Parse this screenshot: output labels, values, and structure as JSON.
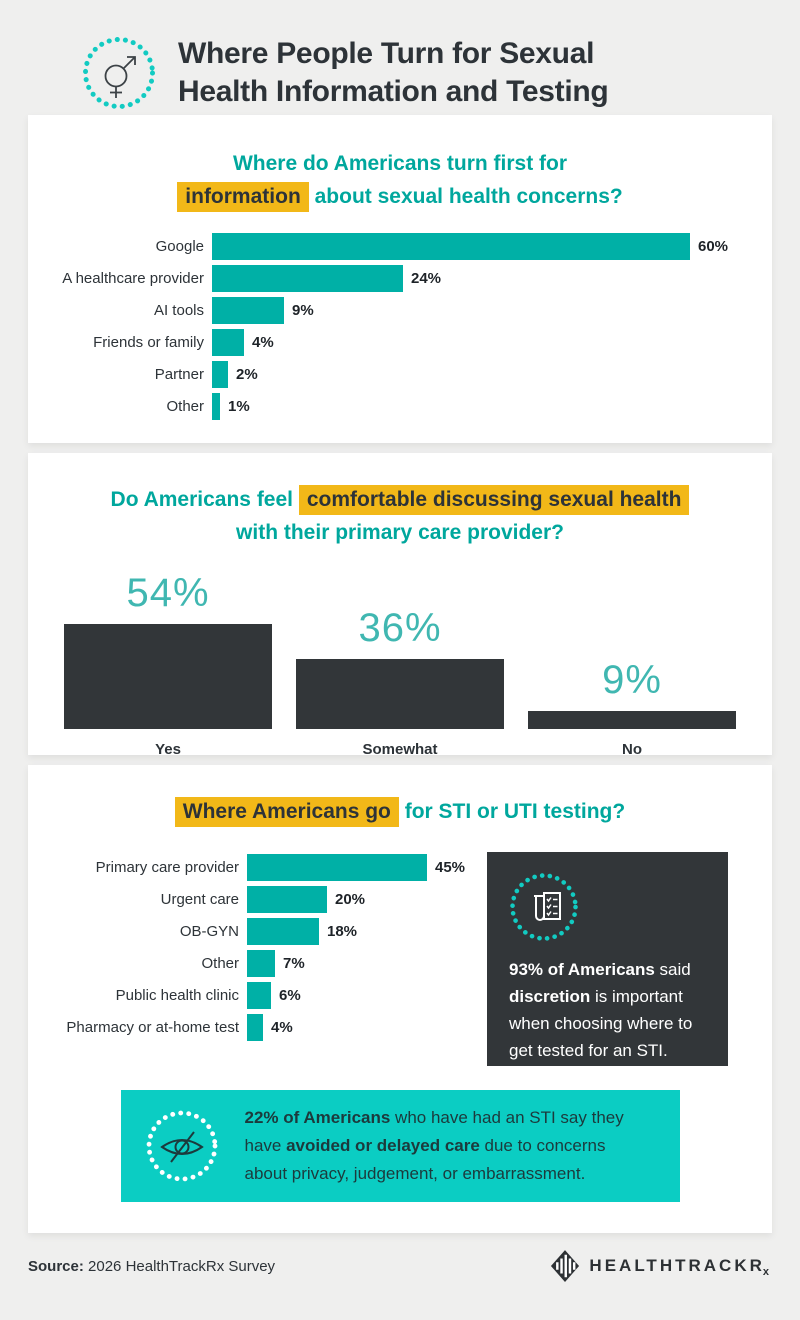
{
  "colors": {
    "page_background": "#efefee",
    "card_background": "#ffffff",
    "accent_teal_bar": "#00b0a6",
    "accent_teal_title": "#00a79d",
    "accent_teal_dots": "#12cbc2",
    "teal_callout_background": "#0bcdc3",
    "highlight_yellow": "#f2b818",
    "charcoal": "#323639"
  },
  "header": {
    "title_line1": "Where People Turn for Sexual",
    "title_line2": "Health Information and Testing",
    "icon": "gender-symbol-icon"
  },
  "chart_data": [
    {
      "type": "bar",
      "orientation": "horizontal",
      "title": "Where do Americans turn first for information about sexual health concerns?",
      "title_segments": {
        "line1": "Where do Americans turn first for",
        "line2_highlight": "information",
        "line2_rest": " about sexual health concerns?"
      },
      "categories": [
        "Google",
        "A healthcare provider",
        "AI tools",
        "Friends or family",
        "Partner",
        "Other"
      ],
      "values": [
        60,
        24,
        9,
        4,
        2,
        1
      ],
      "value_labels": [
        "60%",
        "24%",
        "9%",
        "4%",
        "2%",
        "1%"
      ],
      "unit": "%",
      "xlim": [
        0,
        60
      ],
      "bar_color": "#00b0a6",
      "grid": false,
      "legend": false
    },
    {
      "type": "bar",
      "orientation": "vertical",
      "title": "Do Americans feel comfortable discussing sexual health with their primary care provider?",
      "title_segments": {
        "line1_pre": "Do Americans feel ",
        "line1_highlight": "comfortable discussing sexual health",
        "line2": "with their primary care provider?"
      },
      "categories": [
        "Yes",
        "Somewhat",
        "No"
      ],
      "values": [
        54,
        36,
        9
      ],
      "value_labels": [
        "54%",
        "36%",
        "9%"
      ],
      "unit": "%",
      "ylim": [
        0,
        54
      ],
      "bar_color": "#323639",
      "grid": false,
      "legend": false
    },
    {
      "type": "bar",
      "orientation": "horizontal",
      "title": "Where Americans go for STI or UTI testing?",
      "title_segments": {
        "highlight": "Where Americans go",
        "rest": " for STI or UTI testing?"
      },
      "categories": [
        "Primary care provider",
        "Urgent care",
        "OB-GYN",
        "Other",
        "Public health clinic",
        "Pharmacy or at-home test"
      ],
      "values": [
        45,
        20,
        18,
        7,
        6,
        4
      ],
      "value_labels": [
        "45%",
        "20%",
        "18%",
        "7%",
        "6%",
        "4%"
      ],
      "unit": "%",
      "xlim": [
        0,
        45
      ],
      "bar_color": "#00b0a6",
      "grid": false,
      "legend": false
    }
  ],
  "dark_callout": {
    "icon": "test-tube-checklist-icon",
    "seg_bold1": "93% of Americans",
    "seg1": " said ",
    "seg_bold2": "discretion",
    "seg2": " is important when choosing where to get tested for an STI."
  },
  "teal_callout": {
    "icon": "eye-slash-icon",
    "seg_bold1": "22% of Americans",
    "seg1": " who have had an STI say they have ",
    "seg_bold2": "avoided or delayed care",
    "seg2": " due to concerns about privacy, judgement, or embarrassment."
  },
  "footer": {
    "source_label": "Source:",
    "source_text": " 2026 HealthTrackRx Survey",
    "logo_text": "HEALTHTRACKR",
    "logo_sub": "x"
  }
}
